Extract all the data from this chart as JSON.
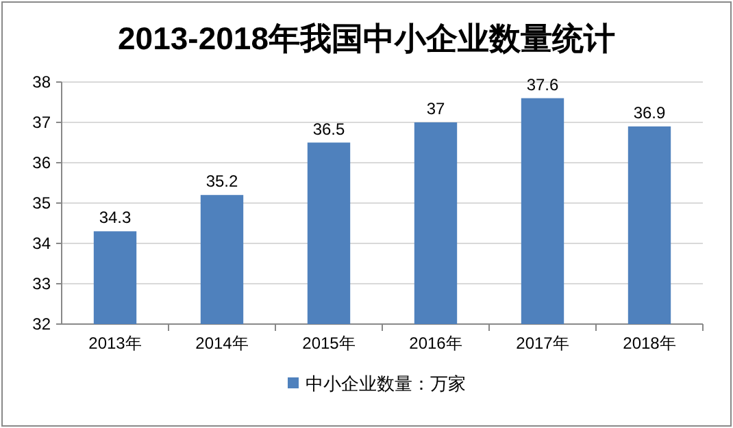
{
  "chart_data": {
    "type": "bar",
    "title": "2013-2018年我国中小企业数量统计",
    "categories": [
      "2013年",
      "2014年",
      "2015年",
      "2016年",
      "2017年",
      "2018年"
    ],
    "series": [
      {
        "name": "中小企业数量：万家",
        "color": "#4f81bd",
        "values": [
          34.3,
          35.2,
          36.5,
          37,
          37.6,
          36.9
        ]
      }
    ],
    "ylim": [
      32,
      38
    ],
    "yticks": [
      32,
      33,
      34,
      35,
      36,
      37,
      38
    ],
    "grid": "y",
    "legend": "bottom",
    "data_labels": true
  }
}
